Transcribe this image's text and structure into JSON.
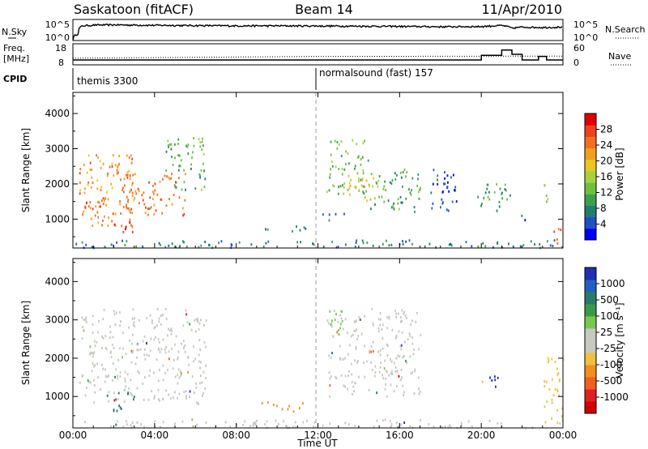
{
  "header": {
    "station": "Saskatoon (fitACF)",
    "beam": "Beam 14",
    "date": "11/Apr/2010"
  },
  "noise_panel": {
    "left_label": "N.Sky",
    "right_label": "N.Search",
    "left_ticks": [
      "10^5",
      "10^0"
    ],
    "right_ticks": [
      "10^5",
      "10^0"
    ]
  },
  "freq_panel": {
    "left_label_1": "Freq.",
    "left_label_2": "[MHz]",
    "right_label": "Nave",
    "left_ticks": [
      "18",
      "8"
    ],
    "right_ticks": [
      "60",
      "0"
    ]
  },
  "cpid": {
    "label": "CPID",
    "modes": [
      {
        "name": "themis 3300",
        "start_hour": 0
      },
      {
        "name": "normalsound (fast) 157",
        "start_hour": 12
      }
    ]
  },
  "time_axis": {
    "title": "Time UT",
    "ticks": [
      "00:00",
      "04:00",
      "08:00",
      "12:00",
      "16:00",
      "20:00",
      "00:00"
    ],
    "range_hours": [
      0,
      24
    ]
  },
  "colors": {
    "power": [
      "#0000ff",
      "#2050c8",
      "#1e7f6e",
      "#3c9e50",
      "#70c040",
      "#a8d23c",
      "#e8c820",
      "#f0a020",
      "#f07020",
      "#f04020",
      "#e00000"
    ],
    "velocity": [
      "#2030b0",
      "#2060c0",
      "#2a7a6a",
      "#3a9a4a",
      "#78c850",
      "#c8c8c0",
      "#c8c8c0",
      "#f0c040",
      "#f09020",
      "#f06020",
      "#e02020",
      "#d00000"
    ]
  },
  "chart_data": [
    {
      "type": "line",
      "title": "N.Sky / N.Search",
      "series": [
        {
          "name": "N.Sky",
          "x": [
            0,
            0.25,
            0.5,
            1,
            2,
            4,
            6,
            8,
            10,
            12,
            14,
            16,
            18,
            20,
            21,
            21.5,
            22,
            23,
            24
          ],
          "y": [
            1,
            40,
            3000,
            4500,
            5000,
            4000,
            3500,
            3000,
            3000,
            2800,
            2500,
            2200,
            1800,
            2000,
            3500,
            800,
            1500,
            1200,
            1500
          ]
        }
      ],
      "ylim": [
        1,
        100000
      ],
      "log_scale": true
    },
    {
      "type": "line",
      "title": "Freq / Nave",
      "series": [
        {
          "name": "Freq",
          "x": [
            0,
            12,
            19.5,
            20,
            21,
            21.5,
            22,
            22.8,
            23.2,
            24
          ],
          "y": [
            10.3,
            10.3,
            10.3,
            12.5,
            15,
            13,
            10.3,
            12,
            10.3,
            10.3
          ]
        },
        {
          "name": "Nave",
          "x": [
            0,
            12,
            24
          ],
          "y": [
            19,
            24,
            25
          ]
        }
      ],
      "ylim": [
        8,
        18
      ],
      "y2lim": [
        0,
        60
      ]
    },
    {
      "type": "heatmap",
      "panel": "power",
      "ylabel": "Slant Range [km]",
      "xlabel": "",
      "yticks": [
        "1000",
        "2000",
        "3000",
        "4000"
      ],
      "ylim": [
        180,
        4600
      ],
      "xlim": [
        0,
        24
      ],
      "colorbar": {
        "label": "Power [dB]",
        "ticks": [
          "4",
          "8",
          "12",
          "16",
          "20",
          "24",
          "28"
        ],
        "range": [
          0,
          30
        ]
      },
      "regions": [
        {
          "t0": 0.3,
          "t1": 3.0,
          "r_lo": 800,
          "r_hi": 2900,
          "level": 22
        },
        {
          "t0": 0.3,
          "t1": 1.5,
          "r_lo": 1200,
          "r_hi": 1600,
          "level": 26
        },
        {
          "t0": 2.0,
          "t1": 3.0,
          "r_lo": 600,
          "r_hi": 1100,
          "level": 28
        },
        {
          "t0": 2.5,
          "t1": 5.5,
          "r_lo": 1100,
          "r_hi": 2300,
          "level": 24
        },
        {
          "t0": 4.5,
          "t1": 6.5,
          "r_lo": 1800,
          "r_hi": 3300,
          "level": 10
        },
        {
          "t0": 9.2,
          "t1": 9.8,
          "r_lo": 650,
          "r_hi": 850,
          "level": 8
        },
        {
          "t0": 10.0,
          "t1": 11.5,
          "r_lo": 600,
          "r_hi": 800,
          "level": 8
        },
        {
          "t0": 12.0,
          "t1": 13.5,
          "r_lo": 950,
          "r_hi": 1150,
          "level": 6
        },
        {
          "t0": 12.4,
          "t1": 14.5,
          "r_lo": 1700,
          "r_hi": 3300,
          "level": 12
        },
        {
          "t0": 13.5,
          "t1": 15.0,
          "r_lo": 1500,
          "r_hi": 2200,
          "level": 18
        },
        {
          "t0": 14.5,
          "t1": 17.0,
          "r_lo": 1200,
          "r_hi": 2400,
          "level": 10
        },
        {
          "t0": 17.5,
          "t1": 19.0,
          "r_lo": 1200,
          "r_hi": 2400,
          "level": 2
        },
        {
          "t0": 19.8,
          "t1": 21.5,
          "r_lo": 1200,
          "r_hi": 2000,
          "level": 8
        },
        {
          "t0": 21.8,
          "t1": 22.2,
          "r_lo": 800,
          "r_hi": 1100,
          "level": 4
        },
        {
          "t0": 23.0,
          "t1": 23.3,
          "r_lo": 1300,
          "r_hi": 2000,
          "level": 14
        },
        {
          "t0": 23.5,
          "t1": 24.0,
          "r_lo": 300,
          "r_hi": 800,
          "level": 26
        },
        {
          "t0": 0.0,
          "t1": 24.0,
          "r_lo": 180,
          "r_hi": 400,
          "level": 6
        }
      ]
    },
    {
      "type": "heatmap",
      "panel": "velocity",
      "ylabel": "Slant Range [km]",
      "xlabel": "Time UT",
      "yticks": [
        "1000",
        "2000",
        "3000",
        "4000"
      ],
      "ylim": [
        180,
        4600
      ],
      "xlim": [
        0,
        24
      ],
      "colorbar": {
        "label": "Velocity [m s⁻¹]",
        "ticks": [
          "1000",
          "500",
          "100",
          "25",
          "-25",
          "-100",
          "-500",
          "-1000"
        ]
      },
      "regions": [
        {
          "t0": 0.3,
          "t1": 6.5,
          "r_lo": 800,
          "r_hi": 3300,
          "value": 0
        },
        {
          "t0": 1.5,
          "t1": 3.0,
          "r_lo": 600,
          "r_hi": 1100,
          "value": 400
        },
        {
          "t0": 9.2,
          "t1": 11.5,
          "r_lo": 600,
          "r_hi": 850,
          "value": -200
        },
        {
          "t0": 12.4,
          "t1": 17.0,
          "r_lo": 1000,
          "r_hi": 3300,
          "value": 0
        },
        {
          "t0": 12.4,
          "t1": 13.2,
          "r_lo": 2500,
          "r_hi": 3300,
          "value": 80
        },
        {
          "t0": 20.0,
          "t1": 21.0,
          "r_lo": 1200,
          "r_hi": 1600,
          "value": 800
        },
        {
          "t0": 23.0,
          "t1": 24.0,
          "r_lo": 300,
          "r_hi": 2000,
          "value": -80
        },
        {
          "t0": 0.0,
          "t1": 24.0,
          "r_lo": 180,
          "r_hi": 400,
          "value": -30
        }
      ]
    }
  ]
}
